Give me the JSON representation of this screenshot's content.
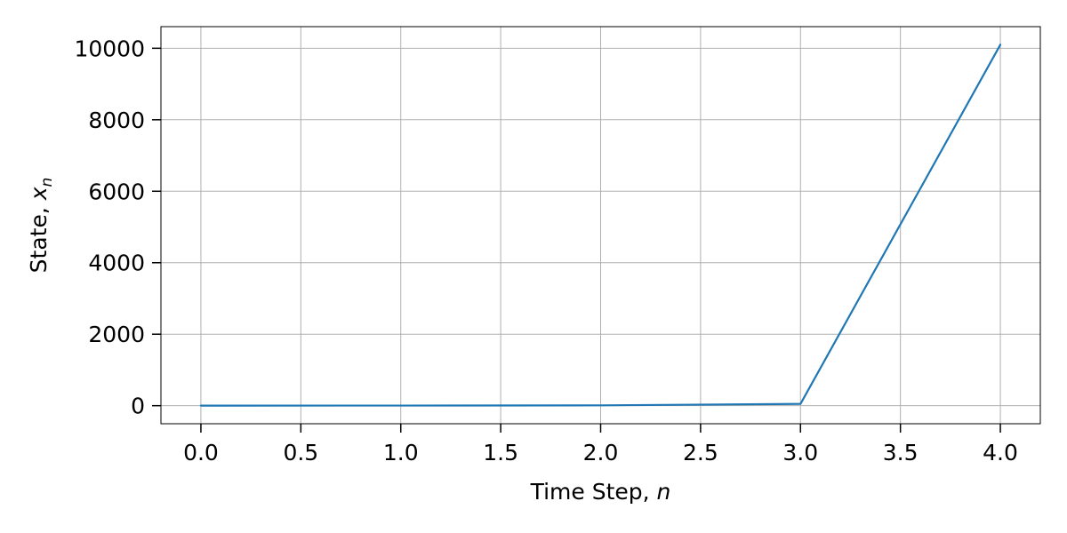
{
  "chart_data": {
    "type": "line",
    "title": "",
    "xlabel": "Time Step, ",
    "xlabel_var": "n",
    "ylabel": "State, ",
    "ylabel_var": "x",
    "ylabel_sub": "n",
    "x": [
      0,
      1,
      2,
      3,
      4
    ],
    "series": [
      {
        "name": "x_n",
        "values": [
          1,
          3,
          9,
          50,
          10100
        ],
        "color": "#1f77b4"
      }
    ],
    "xlim": [
      -0.2,
      4.2
    ],
    "ylim": [
      -505,
      10605
    ],
    "xticks": [
      0.0,
      0.5,
      1.0,
      1.5,
      2.0,
      2.5,
      3.0,
      3.5,
      4.0
    ],
    "xtick_labels": [
      "0.0",
      "0.5",
      "1.0",
      "1.5",
      "2.0",
      "2.5",
      "3.0",
      "3.5",
      "4.0"
    ],
    "yticks": [
      0,
      2000,
      4000,
      6000,
      8000,
      10000
    ],
    "ytick_labels": [
      "0",
      "2000",
      "4000",
      "6000",
      "8000",
      "10000"
    ],
    "grid": true,
    "grid_color": "#b0b0b0",
    "axis_color": "#000000"
  }
}
